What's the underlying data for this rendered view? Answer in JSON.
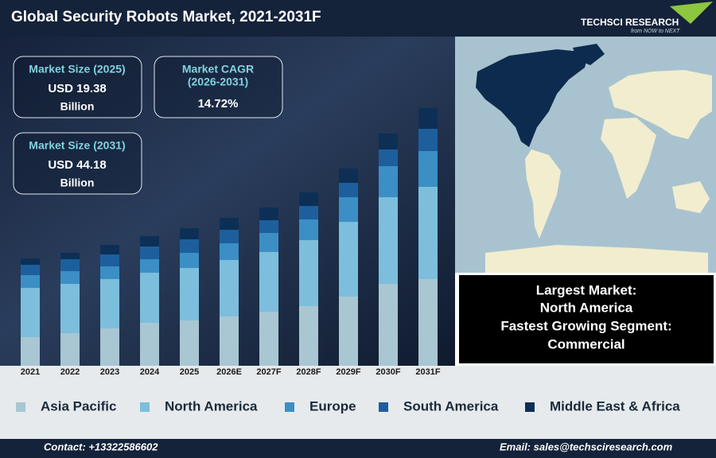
{
  "header": {
    "title": "Global Security Robots Market, 2021-2031F",
    "logo": "TECHSCI RESEARCH",
    "tagline": "from NOW to NEXT"
  },
  "kpis": [
    {
      "label": "Market Size (2025)",
      "value": "USD 19.38",
      "unit": "Billion"
    },
    {
      "label": "Market CAGR",
      "sublabel": "(2026-2031)",
      "value": "14.72%"
    },
    {
      "label": "Market Size (2031)",
      "value": "USD 44.18",
      "unit": "Billion"
    }
  ],
  "highlights": [
    "Largest Market:",
    "North America",
    "Fastest Growing Segment:",
    "Commercial"
  ],
  "footer": {
    "contact": "Contact: +13322586602",
    "email": "Email: sales@techsciresearch.com"
  },
  "chart_data": {
    "type": "stacked_bar",
    "categories": [
      "2021",
      "2022",
      "2023",
      "2024",
      "2025",
      "2026E",
      "2027F",
      "2028F",
      "2029F",
      "2030F",
      "2031F"
    ],
    "series": [
      {
        "name": "Asia Pacific",
        "color": "#a9c6d3",
        "values": [
          36,
          41,
          47,
          54,
          57,
          62,
          68,
          75,
          87,
          103,
          109
        ]
      },
      {
        "name": "North America",
        "color": "#7cbedc",
        "values": [
          62,
          62,
          62,
          63,
          66,
          71,
          75,
          83,
          94,
          109,
          116
        ]
      },
      {
        "name": "Europe",
        "color": "#3b8fc5",
        "values": [
          16,
          16,
          16,
          17,
          19,
          21,
          24,
          26,
          31,
          39,
          45
        ]
      },
      {
        "name": "South America",
        "color": "#1d5f9d",
        "values": [
          13,
          15,
          15,
          16,
          17,
          17,
          16,
          17,
          18,
          21,
          28
        ]
      },
      {
        "name": "Middle East & Africa",
        "color": "#0d2f55",
        "values": [
          8,
          8,
          12,
          13,
          14,
          15,
          16,
          17,
          18,
          20,
          26
        ]
      }
    ]
  }
}
